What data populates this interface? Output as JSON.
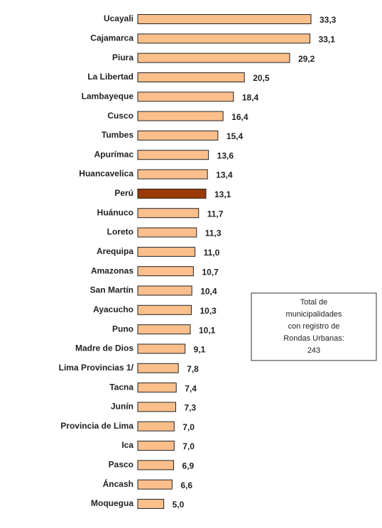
{
  "chart_data": {
    "type": "bar",
    "orientation": "horizontal",
    "categories": [
      "Ucayali",
      "Cajamarca",
      "Piura",
      "La Libertad",
      "Lambayeque",
      "Cusco",
      "Tumbes",
      "Apurímac",
      "Huancavelica",
      "Perú",
      "Huánuco",
      "Loreto",
      "Arequipa",
      "Amazonas",
      "San Martín",
      "Ayacucho",
      "Puno",
      "Madre de Dios",
      "Lima Provincias 1/",
      "Tacna",
      "Junín",
      "Provincia de Lima",
      "Ica",
      "Pasco",
      "Áncash",
      "Moquegua"
    ],
    "values": [
      33.3,
      33.1,
      29.2,
      20.5,
      18.4,
      16.4,
      15.4,
      13.6,
      13.4,
      13.1,
      11.7,
      11.3,
      11.0,
      10.7,
      10.4,
      10.3,
      10.1,
      9.1,
      7.8,
      7.4,
      7.3,
      7.0,
      7.0,
      6.9,
      6.6,
      5.0
    ],
    "value_labels": [
      "33,3",
      "33,1",
      "29,2",
      "20,5",
      "18,4",
      "16,4",
      "15,4",
      "13,6",
      "13,4",
      "13,1",
      "11,7",
      "11,3",
      "11,0",
      "10,7",
      "10,4",
      "10,3",
      "10,1",
      "9,1",
      "7,8",
      "7,4",
      "7,3",
      "7,0",
      "7,0",
      "6,9",
      "6,6",
      "5,0"
    ],
    "colors": [
      "#fbbf8c",
      "#fbbf8c",
      "#fbbf8c",
      "#fbbf8c",
      "#fbbf8c",
      "#fbbf8c",
      "#fbbf8c",
      "#fbbf8c",
      "#fbbf8c",
      "#9a3a06",
      "#fbbf8c",
      "#fbbf8c",
      "#fbbf8c",
      "#fbbf8c",
      "#fbbf8c",
      "#fbbf8c",
      "#fbbf8c",
      "#fbbf8c",
      "#fbbf8c",
      "#fbbf8c",
      "#fbbf8c",
      "#fbbf8c",
      "#fbbf8c",
      "#fbbf8c",
      "#fbbf8c",
      "#fbbf8c"
    ],
    "annotation": [
      "Total de",
      "municipalidades",
      "con registro de",
      "Rondas Urbanas:",
      "243"
    ]
  }
}
